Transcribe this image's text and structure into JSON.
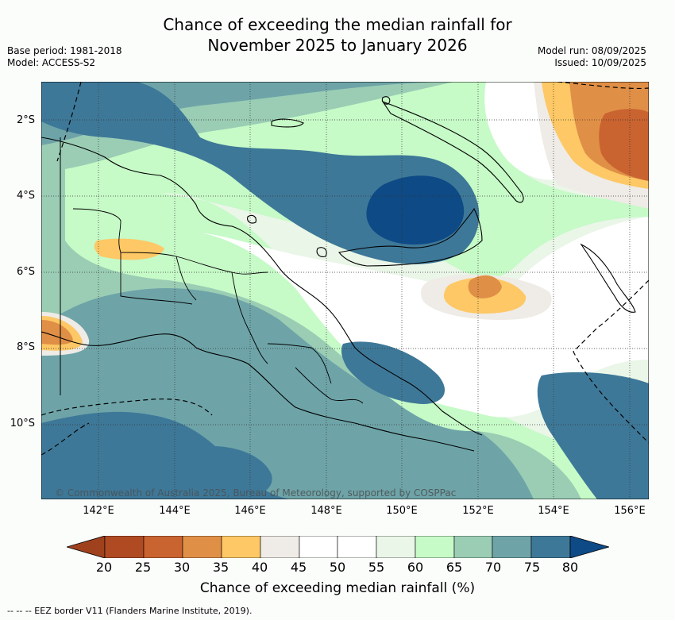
{
  "title": {
    "line1": "Chance of exceeding the median rainfall for",
    "line2": "November 2025 to January 2026"
  },
  "meta_left": {
    "base_period": "Base period: 1981-2018",
    "model": "Model: ACCESS-S2"
  },
  "meta_right": {
    "model_run": "Model run: 08/09/2025",
    "issued": "Issued: 10/09/2025"
  },
  "map": {
    "latitude_labels": [
      "2°S",
      "4°S",
      "6°S",
      "8°S",
      "10°S"
    ],
    "longitude_labels": [
      "142°E",
      "144°E",
      "146°E",
      "148°E",
      "150°E",
      "152°E",
      "154°E",
      "156°E"
    ],
    "copyright": "© Commonwealth of Australia 2025, Bureau of Meteorology, supported by COSPPac"
  },
  "colorbar": {
    "label": "Chance of exceeding median rainfall (%)",
    "ticks": [
      "20",
      "25",
      "30",
      "35",
      "40",
      "45",
      "50",
      "55",
      "60",
      "65",
      "70",
      "75",
      "80"
    ],
    "colors": {
      "below_20": "#a0411e",
      "20-25": "#b04a22",
      "25-30": "#c96330",
      "30-35": "#e08f46",
      "35-40": "#fdc865",
      "40-45": "#efebe6",
      "45-50": "#ffffff",
      "50-55": "#ffffff",
      "55-60": "#eaf6e8",
      "60-65": "#c6fac7",
      "65-70": "#9acdb4",
      "70-75": "#6ea4a8",
      "75-80": "#3e7898",
      "above_80": "#0e4a85"
    }
  },
  "footnote": "--  --  -- EEZ border V11 (Flanders Marine Institute, 2019)."
}
